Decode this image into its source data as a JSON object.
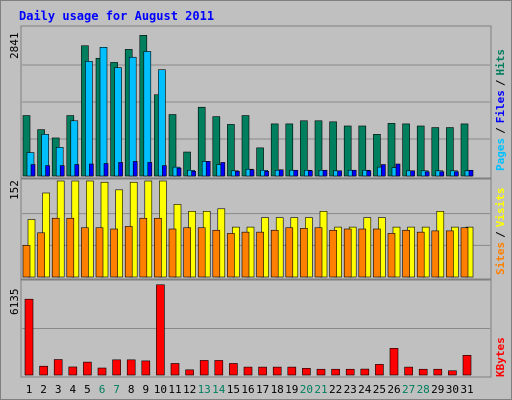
{
  "title": "Daily usage for August 2011",
  "chart_data": [
    {
      "type": "bar",
      "name": "hits-files-pages",
      "categories": [
        "1",
        "2",
        "3",
        "4",
        "5",
        "6",
        "7",
        "8",
        "9",
        "10",
        "11",
        "12",
        "13",
        "14",
        "15",
        "16",
        "17",
        "18",
        "19",
        "20",
        "21",
        "22",
        "23",
        "24",
        "25",
        "26",
        "27",
        "28",
        "29",
        "30",
        "31"
      ],
      "ymax_label": "2841",
      "ylim": [
        0,
        2841
      ],
      "series": [
        {
          "name": "Hits",
          "color": "#007f5f",
          "values": [
            1160,
            890,
            730,
            1160,
            2500,
            2260,
            2180,
            2430,
            2700,
            1560,
            1180,
            460,
            1320,
            1140,
            990,
            1160,
            540,
            1000,
            1000,
            1060,
            1060,
            1040,
            960,
            960,
            800,
            1010,
            1000,
            960,
            930,
            930,
            1000
          ]
        },
        {
          "name": "Files",
          "color": "#00bfff",
          "values": [
            450,
            800,
            550,
            1060,
            2200,
            2470,
            2080,
            2280,
            2390,
            2040,
            170,
            110,
            280,
            220,
            100,
            130,
            110,
            110,
            110,
            110,
            110,
            100,
            110,
            110,
            170,
            160,
            100,
            100,
            100,
            100,
            100
          ]
        },
        {
          "name": "Pages",
          "color": "#0000ff",
          "values": [
            220,
            200,
            200,
            220,
            230,
            240,
            260,
            280,
            260,
            200,
            150,
            90,
            280,
            260,
            90,
            120,
            90,
            120,
            110,
            100,
            110,
            100,
            110,
            100,
            220,
            230,
            100,
            80,
            80,
            80,
            110
          ]
        }
      ]
    },
    {
      "type": "bar",
      "name": "visits-sites",
      "categories": [
        "1",
        "2",
        "3",
        "4",
        "5",
        "6",
        "7",
        "8",
        "9",
        "10",
        "11",
        "12",
        "13",
        "14",
        "15",
        "16",
        "17",
        "18",
        "19",
        "20",
        "21",
        "22",
        "23",
        "24",
        "25",
        "26",
        "27",
        "28",
        "29",
        "30",
        "31"
      ],
      "ymax_label": "152",
      "ylim": [
        0,
        152
      ],
      "series": [
        {
          "name": "Visits",
          "color": "#ffff00",
          "values": [
            91,
            133,
            152,
            152,
            152,
            150,
            138,
            150,
            152,
            152,
            115,
            104,
            104,
            108,
            79,
            79,
            94,
            94,
            94,
            94,
            104,
            79,
            79,
            94,
            94,
            79,
            79,
            79,
            104,
            79,
            79
          ]
        },
        {
          "name": "Sites",
          "color": "#ff8000",
          "values": [
            50,
            70,
            93,
            93,
            78,
            78,
            76,
            80,
            93,
            93,
            76,
            78,
            78,
            74,
            69,
            71,
            71,
            74,
            78,
            77,
            78,
            74,
            76,
            76,
            76,
            69,
            74,
            71,
            73,
            73,
            78
          ]
        }
      ]
    },
    {
      "type": "bar",
      "name": "kbytes",
      "categories": [
        "1",
        "2",
        "3",
        "4",
        "5",
        "6",
        "7",
        "8",
        "9",
        "10",
        "11",
        "12",
        "13",
        "14",
        "15",
        "16",
        "17",
        "18",
        "19",
        "20",
        "21",
        "22",
        "23",
        "24",
        "25",
        "26",
        "27",
        "28",
        "29",
        "30",
        "31"
      ],
      "ymax_label": "6135",
      "ylim": [
        0,
        6135
      ],
      "series": [
        {
          "name": "KBytes",
          "color": "#ff0000",
          "values": [
            5000,
            580,
            1020,
            530,
            850,
            460,
            1000,
            1000,
            930,
            5950,
            760,
            340,
            960,
            960,
            760,
            520,
            520,
            520,
            520,
            440,
            380,
            380,
            380,
            390,
            700,
            1760,
            520,
            380,
            380,
            280,
            1300
          ]
        }
      ]
    }
  ],
  "x_labels": [
    {
      "text": "1",
      "weekend": false
    },
    {
      "text": "2",
      "weekend": false
    },
    {
      "text": "3",
      "weekend": false
    },
    {
      "text": "4",
      "weekend": false
    },
    {
      "text": "5",
      "weekend": false
    },
    {
      "text": "6",
      "weekend": true
    },
    {
      "text": "7",
      "weekend": true
    },
    {
      "text": "8",
      "weekend": false
    },
    {
      "text": "9",
      "weekend": false
    },
    {
      "text": "10",
      "weekend": false
    },
    {
      "text": "11",
      "weekend": false
    },
    {
      "text": "12",
      "weekend": false
    },
    {
      "text": "13",
      "weekend": true
    },
    {
      "text": "14",
      "weekend": true
    },
    {
      "text": "15",
      "weekend": false
    },
    {
      "text": "16",
      "weekend": false
    },
    {
      "text": "17",
      "weekend": false
    },
    {
      "text": "18",
      "weekend": false
    },
    {
      "text": "19",
      "weekend": false
    },
    {
      "text": "20",
      "weekend": true
    },
    {
      "text": "21",
      "weekend": true
    },
    {
      "text": "22",
      "weekend": false
    },
    {
      "text": "23",
      "weekend": false
    },
    {
      "text": "24",
      "weekend": false
    },
    {
      "text": "25",
      "weekend": false
    },
    {
      "text": "26",
      "weekend": false
    },
    {
      "text": "27",
      "weekend": true
    },
    {
      "text": "28",
      "weekend": true
    },
    {
      "text": "29",
      "weekend": false
    },
    {
      "text": "30",
      "weekend": false
    },
    {
      "text": "31",
      "weekend": false
    }
  ],
  "right_labels": {
    "pages": "Pages",
    "files": "Files",
    "hits": "Hits",
    "sites": "Sites",
    "visits": "Visits",
    "kbytes": "KBytes",
    "sep": "/"
  },
  "colors": {
    "background": "#c0c0c0",
    "title": "#0000ff",
    "hits": "#007f5f",
    "files": "#00bfff",
    "pages": "#0000ff",
    "visits": "#ffff00",
    "sites": "#ff8000",
    "kbytes": "#ff0000",
    "weekday_label": "#000000",
    "weekend_label": "#007f5f"
  }
}
